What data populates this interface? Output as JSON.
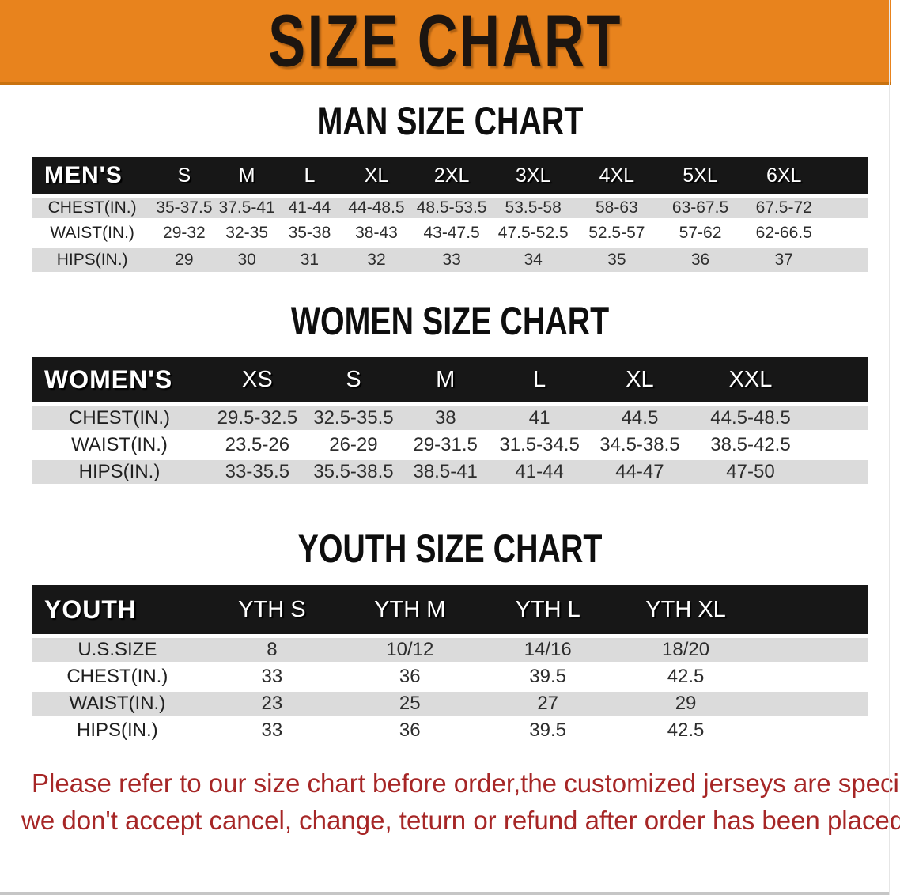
{
  "banner": {
    "title": "SIZE CHART",
    "background": "#E8831D"
  },
  "sections": [
    {
      "heading": "MAN SIZE CHART",
      "table": {
        "header": [
          "MEN'S",
          "S",
          "M",
          "L",
          "XL",
          "2XL",
          "3XL",
          "4XL",
          "5XL",
          "6XL"
        ],
        "rows": [
          {
            "label": "CHEST(IN.)",
            "values": [
              "35-37.5",
              "37.5-41",
              "41-44",
              "44-48.5",
              "48.5-53.5",
              "53.5-58",
              "58-63",
              "63-67.5",
              "67.5-72"
            ]
          },
          {
            "label": "WAIST(IN.)",
            "values": [
              "29-32",
              "32-35",
              "35-38",
              "38-43",
              "43-47.5",
              "47.5-52.5",
              "52.5-57",
              "57-62",
              "62-66.5"
            ]
          },
          {
            "label": "HIPS(IN.)",
            "values": [
              "29",
              "30",
              "31",
              "32",
              "33",
              "34",
              "35",
              "36",
              "37"
            ]
          }
        ]
      }
    },
    {
      "heading": "WOMEN SIZE CHART",
      "table": {
        "header": [
          "WOMEN'S",
          "XS",
          "S",
          "M",
          "L",
          "XL",
          "XXL"
        ],
        "rows": [
          {
            "label": "CHEST(IN.)",
            "values": [
              "29.5-32.5",
              "32.5-35.5",
              "38",
              "41",
              "44.5",
              "44.5-48.5"
            ]
          },
          {
            "label": "WAIST(IN.)",
            "values": [
              "23.5-26",
              "26-29",
              "29-31.5",
              "31.5-34.5",
              "34.5-38.5",
              "38.5-42.5"
            ]
          },
          {
            "label": "HIPS(IN.)",
            "values": [
              "33-35.5",
              "35.5-38.5",
              "38.5-41",
              "41-44",
              "44-47",
              "47-50"
            ]
          }
        ]
      }
    },
    {
      "heading": "YOUTH SIZE CHART",
      "table": {
        "header": [
          "YOUTH",
          "YTH S",
          "YTH M",
          "YTH L",
          "YTH XL"
        ],
        "rows": [
          {
            "label": "U.S.SIZE",
            "values": [
              "8",
              "10/12",
              "14/16",
              "18/20"
            ]
          },
          {
            "label": "CHEST(IN.)",
            "values": [
              "33",
              "36",
              "39.5",
              "42.5"
            ]
          },
          {
            "label": "WAIST(IN.)",
            "values": [
              "23",
              "25",
              "27",
              "29"
            ]
          },
          {
            "label": "HIPS(IN.)",
            "values": [
              "33",
              "36",
              "39.5",
              "42.5"
            ]
          }
        ]
      }
    }
  ],
  "disclaimer": {
    "line1": "Please refer to our size chart before order,the customized jerseys are special products,",
    "line2": "we don't accept cancel, change, teturn or refund after order has been placed!",
    "color": "#A62626"
  },
  "colors": {
    "banner_orange": "#E8831D",
    "table_header_black": "#171717",
    "row_gray": "#DBDBDB"
  }
}
